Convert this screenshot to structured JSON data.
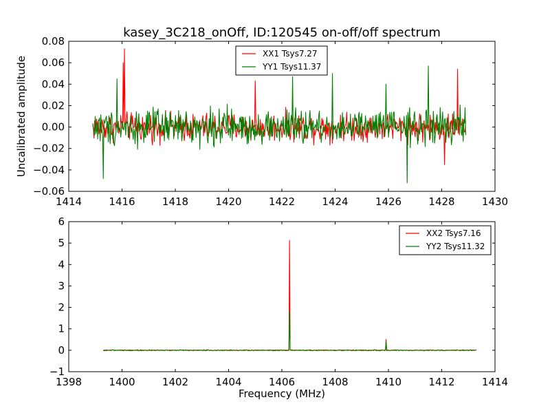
{
  "figure_title": "kasey_3C218_onOff, ID:120545 on-off/off spectrum",
  "chart_data": [
    {
      "type": "line",
      "panel": "top",
      "title": "kasey_3C218_onOff, ID:120545 on-off/off spectrum",
      "xlabel": "",
      "ylabel": "Uncalibrated amplitude",
      "xlim": [
        1414,
        1430
      ],
      "ylim": [
        -0.06,
        0.08
      ],
      "xticks": [
        1414,
        1416,
        1418,
        1420,
        1422,
        1424,
        1426,
        1428,
        1430
      ],
      "yticks": [
        -0.06,
        -0.04,
        -0.02,
        0.0,
        0.02,
        0.04,
        0.06,
        0.08
      ],
      "xtick_labels": [
        "1414",
        "1416",
        "1418",
        "1420",
        "1422",
        "1424",
        "1426",
        "1428",
        "1430"
      ],
      "ytick_labels": [
        "−0.06",
        "−0.04",
        "−0.02",
        "0.00",
        "0.02",
        "0.04",
        "0.06",
        "0.08"
      ],
      "grid": false,
      "legend_position": "top-center",
      "series": [
        {
          "name": "XX1 Tsys7.27",
          "color": "#ff0000",
          "x_range": [
            1414.9,
            1428.9
          ],
          "n_points": 600,
          "noise_amplitude": 0.011,
          "spikes": [
            {
              "x": 1416.1,
              "y": 0.073
            },
            {
              "x": 1416.05,
              "y": 0.06
            },
            {
              "x": 1421.0,
              "y": 0.043
            },
            {
              "x": 1428.6,
              "y": 0.054
            },
            {
              "x": 1428.1,
              "y": -0.035
            }
          ]
        },
        {
          "name": "YY1 Tsys11.37",
          "color": "#008000",
          "x_range": [
            1414.9,
            1428.9
          ],
          "n_points": 600,
          "noise_amplitude": 0.014,
          "spikes": [
            {
              "x": 1415.3,
              "y": -0.048
            },
            {
              "x": 1415.8,
              "y": 0.045
            },
            {
              "x": 1426.7,
              "y": -0.052
            },
            {
              "x": 1427.5,
              "y": 0.057
            },
            {
              "x": 1422.4,
              "y": 0.047
            },
            {
              "x": 1423.9,
              "y": 0.05
            },
            {
              "x": 1425.9,
              "y": 0.04
            }
          ]
        }
      ]
    },
    {
      "type": "line",
      "panel": "bottom",
      "title": "",
      "xlabel": "Frequency (MHz)",
      "ylabel": "",
      "xlim": [
        1398,
        1414
      ],
      "ylim": [
        -1,
        6
      ],
      "xticks": [
        1398,
        1400,
        1402,
        1404,
        1406,
        1408,
        1410,
        1412,
        1414
      ],
      "yticks": [
        -1,
        0,
        1,
        2,
        3,
        4,
        5,
        6
      ],
      "xtick_labels": [
        "1398",
        "1400",
        "1402",
        "1404",
        "1406",
        "1408",
        "1410",
        "1412",
        "1414"
      ],
      "ytick_labels": [
        "−1",
        "0",
        "1",
        "2",
        "3",
        "4",
        "5",
        "6"
      ],
      "grid": false,
      "legend_position": "top-right",
      "series": [
        {
          "name": "XX2 Tsys7.16",
          "color": "#ff0000",
          "x_range": [
            1399.3,
            1413.3
          ],
          "n_points": 600,
          "noise_amplitude": 0.02,
          "spikes": [
            {
              "x": 1406.3,
              "y": 5.12
            },
            {
              "x": 1409.9,
              "y": 0.5
            }
          ]
        },
        {
          "name": "YY2 Tsys11.32",
          "color": "#008000",
          "x_range": [
            1399.3,
            1413.3
          ],
          "n_points": 600,
          "noise_amplitude": 0.02,
          "spikes": [
            {
              "x": 1406.3,
              "y": 1.82
            },
            {
              "x": 1409.9,
              "y": 0.4
            }
          ]
        }
      ]
    }
  ]
}
